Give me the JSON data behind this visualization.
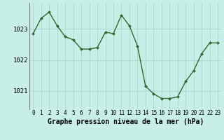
{
  "x": [
    0,
    1,
    2,
    3,
    4,
    5,
    6,
    7,
    8,
    9,
    10,
    11,
    12,
    13,
    14,
    15,
    16,
    17,
    18,
    19,
    20,
    21,
    22,
    23
  ],
  "y": [
    1022.85,
    1023.35,
    1023.55,
    1023.1,
    1022.75,
    1022.65,
    1022.35,
    1022.35,
    1022.4,
    1022.9,
    1022.85,
    1023.45,
    1023.1,
    1022.45,
    1021.15,
    1020.9,
    1020.75,
    1020.75,
    1020.8,
    1021.3,
    1021.65,
    1022.2,
    1022.55,
    1022.55
  ],
  "line_color": "#2d6a2d",
  "marker_color": "#2d6a2d",
  "bg_color": "#c8eee8",
  "grid_color": "#a8cec8",
  "xlabel": "Graphe pression niveau de la mer (hPa)",
  "xlabel_fontsize": 7,
  "ytick_labels": [
    "1021",
    "1022",
    "1023"
  ],
  "ytick_values": [
    1021,
    1022,
    1023
  ],
  "ylim": [
    1020.4,
    1023.85
  ],
  "xlim": [
    -0.5,
    23.5
  ],
  "xtick_labels": [
    "0",
    "1",
    "2",
    "3",
    "4",
    "5",
    "6",
    "7",
    "8",
    "9",
    "10",
    "11",
    "12",
    "13",
    "14",
    "15",
    "16",
    "17",
    "18",
    "19",
    "20",
    "21",
    "22",
    "23"
  ],
  "tick_fontsize": 5.5,
  "ytick_fontsize": 6.5,
  "line_width": 1.0,
  "marker_size": 2.0
}
